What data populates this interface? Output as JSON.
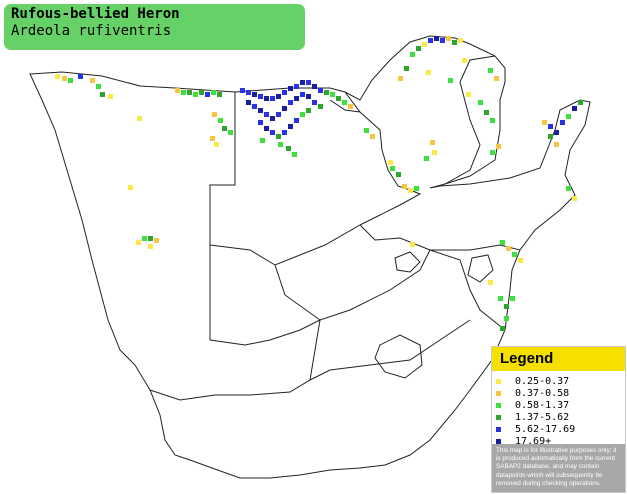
{
  "title": {
    "common_name": "Rufous-bellied Heron",
    "scientific_name": "Ardeola rufiventris"
  },
  "legend": {
    "heading": "Legend",
    "items": [
      {
        "label": "0.25-0.37",
        "color": "#fde84a"
      },
      {
        "label": "0.37-0.58",
        "color": "#f5c543"
      },
      {
        "label": "0.58-1.37",
        "color": "#3de03d"
      },
      {
        "label": "1.37-5.62",
        "color": "#2ea52e"
      },
      {
        "label": "5.62-17.69",
        "color": "#2a32e6"
      },
      {
        "label": "17.69+",
        "color": "#1a1f9e"
      }
    ],
    "disclaimer": "This map is for illustrative purposes only; it is produced automatically from the current SABAP2 database, and may contain datapoints which will subsequently be removed during checking operations."
  },
  "colors": {
    "title_bg": "#66d166",
    "legend_head_bg": "#f5e000",
    "disclaimer_bg": "#a8a8a8",
    "border": "#222222"
  }
}
